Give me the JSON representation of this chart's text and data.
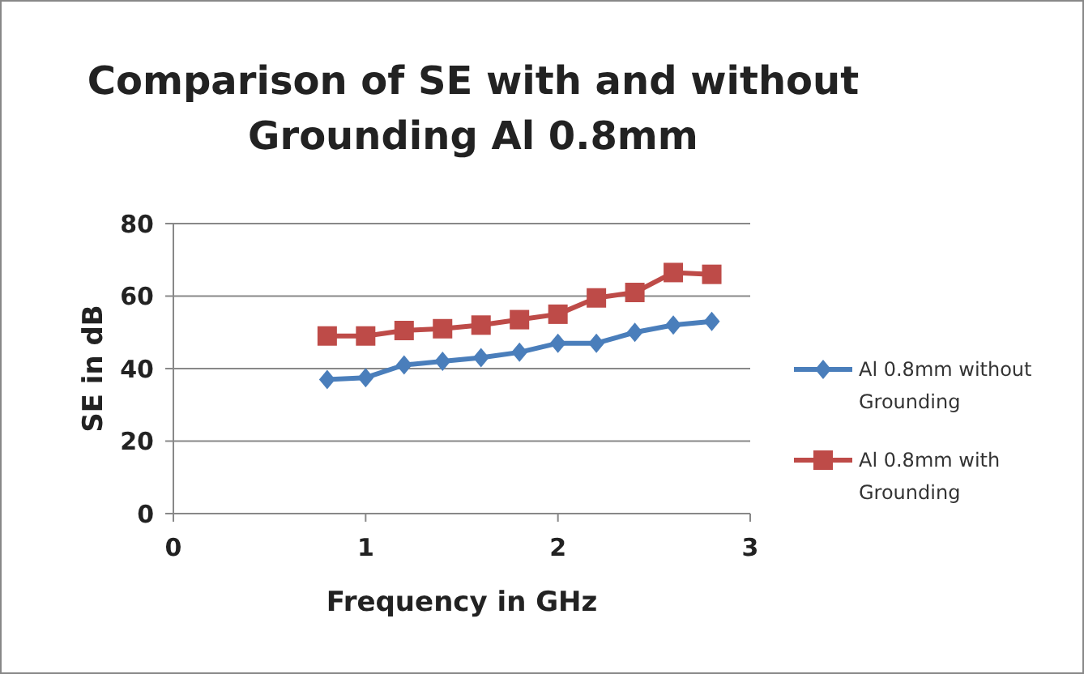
{
  "chart_data": {
    "type": "line",
    "title": "Comparison of SE with and without Grounding Al 0.8mm",
    "xlabel": "Frequency in GHz",
    "ylabel": "SE in dB",
    "x": [
      0.8,
      1.0,
      1.2,
      1.4,
      1.6,
      1.8,
      2.0,
      2.2,
      2.4,
      2.6,
      2.8
    ],
    "series": [
      {
        "name": "Al 0.8mm without Grounding",
        "color": "#4a7ebb",
        "marker": "diamond",
        "values": [
          37,
          37.5,
          41,
          42,
          43,
          44.5,
          47,
          47,
          50,
          52,
          53
        ]
      },
      {
        "name": "Al 0.8mm with Grounding",
        "color": "#be4b48",
        "marker": "square",
        "values": [
          49,
          49,
          50.5,
          51,
          52,
          53.5,
          55,
          59.5,
          61,
          66.5,
          66
        ]
      }
    ],
    "xlim": [
      0,
      3
    ],
    "xticks": [
      0,
      1,
      2,
      3
    ],
    "ylim": [
      0,
      80
    ],
    "yticks": [
      0,
      20,
      40,
      60,
      80
    ],
    "grid": "y",
    "legend": "right"
  }
}
